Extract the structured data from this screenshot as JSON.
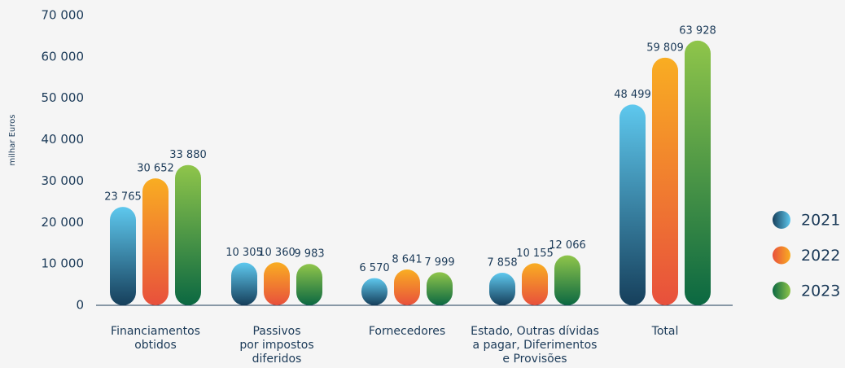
{
  "chart_data": {
    "type": "bar",
    "y_label": "milhar Euros",
    "categories": [
      [
        "Financiamentos",
        "obtidos"
      ],
      [
        "Passivos",
        "por impostos",
        "diferidos"
      ],
      [
        "Fornecedores"
      ],
      [
        "Estado, Outras dívidas",
        "a pagar, Diferimentos",
        "e Provisões"
      ],
      [
        "Total"
      ]
    ],
    "series": [
      {
        "name": "2021",
        "colors": [
          "#5ec8ee",
          "#163f5b"
        ],
        "values": [
          23765,
          10305,
          6570,
          7858,
          48499
        ],
        "value_labels": [
          "23 765",
          "10 305",
          "6 570",
          "7 858",
          "48 499"
        ]
      },
      {
        "name": "2022",
        "colors": [
          "#f9ad22",
          "#e8503c"
        ],
        "values": [
          30652,
          10360,
          8641,
          10155,
          59809
        ],
        "value_labels": [
          "30 652",
          "10 360",
          "8 641",
          "10 155",
          "59 809"
        ]
      },
      {
        "name": "2023",
        "colors": [
          "#8fc54a",
          "#0b6842"
        ],
        "values": [
          33880,
          9983,
          7999,
          12066,
          63928
        ],
        "value_labels": [
          "33 880",
          "9 983",
          "7 999",
          "12 066",
          "63 928"
        ]
      }
    ],
    "ylim": [
      0,
      70000
    ],
    "yticks": [
      0,
      {
        "value": 10000,
        "label": "10 000"
      },
      {
        "value": 20000,
        "label": "20 000"
      },
      {
        "value": 30000,
        "label": "30 000"
      },
      {
        "value": 40000,
        "label": "40 000"
      },
      {
        "value": 50000,
        "label": "50 000"
      },
      {
        "value": 60000,
        "label": "60 000"
      },
      {
        "value": 70000,
        "label": "70 000"
      }
    ],
    "grid": false,
    "legend": "right"
  }
}
